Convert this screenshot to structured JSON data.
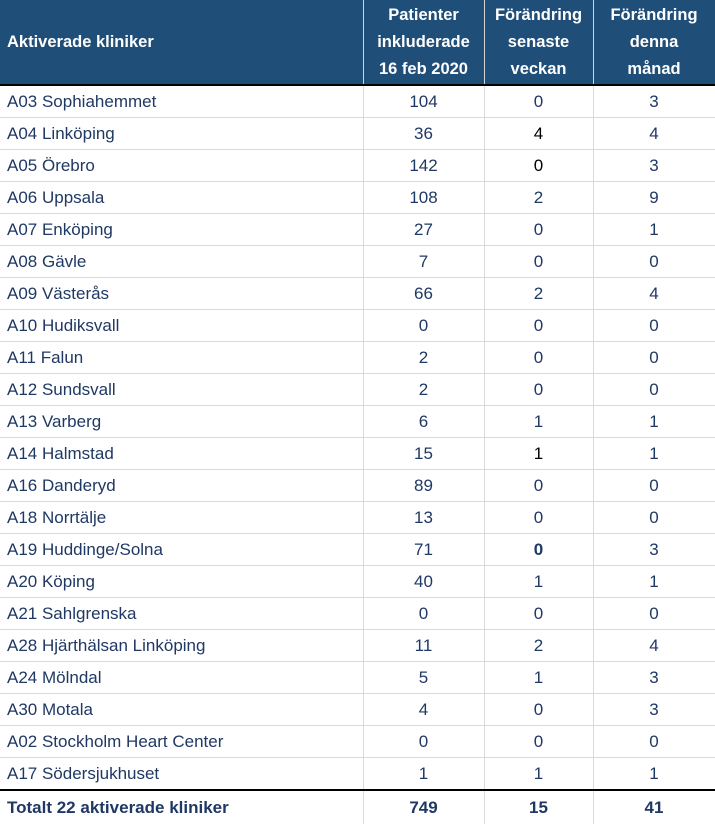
{
  "headers": {
    "clinic": "Aktiverade kliniker",
    "patients": "Patienter\ninkluderade\n16 feb 2020",
    "week": "Förändring\nsenaste\nveckan",
    "month": "Förändring\ndenna\nmånad"
  },
  "rows": [
    {
      "name": "A03 Sophiahemmet",
      "patients": "104",
      "week": "0",
      "month": "3"
    },
    {
      "name": "A04 Linköping",
      "patients": "36",
      "week": "4",
      "month": "4"
    },
    {
      "name": "A05 Örebro",
      "patients": "142",
      "week": "0",
      "month": "3"
    },
    {
      "name": "A06 Uppsala",
      "patients": "108",
      "week": "2",
      "month": "9"
    },
    {
      "name": "A07 Enköping",
      "patients": "27",
      "week": "0",
      "month": "1"
    },
    {
      "name": "A08 Gävle",
      "patients": "7",
      "week": "0",
      "month": "0"
    },
    {
      "name": "A09 Västerås",
      "patients": "66",
      "week": "2",
      "month": "4"
    },
    {
      "name": "A10 Hudiksvall",
      "patients": "0",
      "week": "0",
      "month": "0"
    },
    {
      "name": "A11 Falun",
      "patients": "2",
      "week": "0",
      "month": "0"
    },
    {
      "name": "A12 Sundsvall",
      "patients": "2",
      "week": "0",
      "month": "0"
    },
    {
      "name": "A13 Varberg",
      "patients": "6",
      "week": "1",
      "month": "1"
    },
    {
      "name": "A14 Halmstad",
      "patients": "15",
      "week": "1",
      "month": "1"
    },
    {
      "name": "A16 Danderyd",
      "patients": "89",
      "week": "0",
      "month": "0"
    },
    {
      "name": "A18 Norrtälje",
      "patients": "13",
      "week": "0",
      "month": "0"
    },
    {
      "name": "A19 Huddinge/Solna",
      "patients": "71",
      "week": "0",
      "month": "3"
    },
    {
      "name": "A20 Köping",
      "patients": "40",
      "week": "1",
      "month": "1"
    },
    {
      "name": "A21 Sahlgrenska",
      "patients": "0",
      "week": "0",
      "month": "0"
    },
    {
      "name": "A28 Hjärthälsan Linköping",
      "patients": "11",
      "week": "2",
      "month": "4"
    },
    {
      "name": "A24 Mölndal",
      "patients": "5",
      "week": "1",
      "month": "3"
    },
    {
      "name": "A30 Motala",
      "patients": "4",
      "week": "0",
      "month": "3"
    },
    {
      "name": "A02 Stockholm Heart Center",
      "patients": "0",
      "week": "0",
      "month": "0"
    },
    {
      "name": "A17 Södersjukhuset",
      "patients": "1",
      "week": "1",
      "month": "1"
    }
  ],
  "total": {
    "name": "Totalt 22 aktiverade kliniker",
    "patients": "749",
    "week": "15",
    "month": "41"
  },
  "colors": {
    "header_bg": "#1f4e79",
    "text": "#1f3864"
  }
}
